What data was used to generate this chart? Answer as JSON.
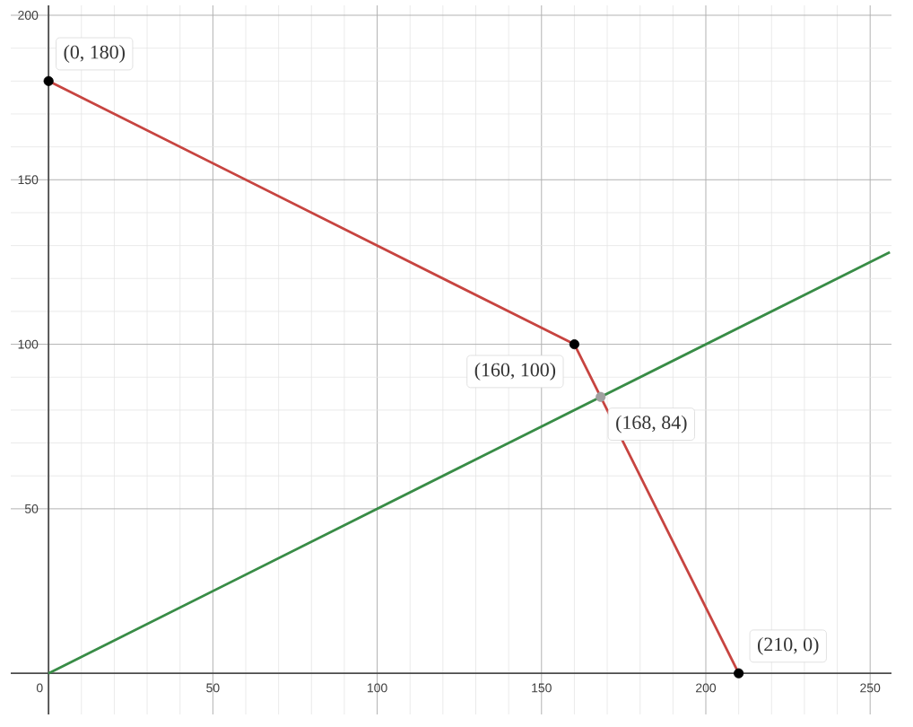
{
  "chart_data": {
    "type": "line",
    "xlim": [
      -11.5,
      256.5
    ],
    "ylim": [
      -12.5,
      203
    ],
    "xticks": [
      0,
      50,
      100,
      150,
      200,
      250
    ],
    "yticks": [
      50,
      100,
      150,
      200
    ],
    "grid": true,
    "series": [
      {
        "color": "#c74440",
        "x": [
          0,
          160,
          210
        ],
        "values": [
          180,
          100,
          0
        ]
      },
      {
        "color": "#388c46",
        "x": [
          0,
          256
        ],
        "values": [
          0,
          128
        ]
      },
      {
        "type": "scatter",
        "color": "#000000",
        "marker": "circle",
        "x": [
          0,
          160,
          210
        ],
        "values": [
          180,
          100,
          0
        ]
      },
      {
        "type": "scatter",
        "color": "#a0a0a0",
        "marker": "circle",
        "x": [
          168
        ],
        "values": [
          84
        ]
      }
    ],
    "annotations": [
      {
        "text": "(0, 180)",
        "x": 0,
        "y": 180
      },
      {
        "text": "(160, 100)",
        "x": 160,
        "y": 100
      },
      {
        "text": "(168, 84)",
        "x": 168,
        "y": 84
      },
      {
        "text": "(210, 0)",
        "x": 210,
        "y": 0
      }
    ]
  }
}
